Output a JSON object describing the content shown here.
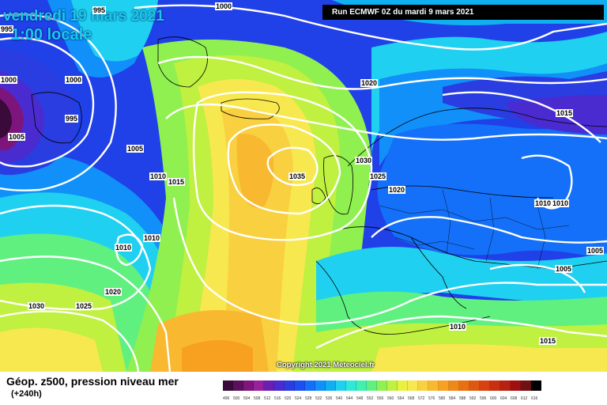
{
  "header": {
    "date_title": "vendredi 19 mars 2021",
    "time_title": "1:00 locale",
    "run_info": "Run ECMWF 0Z du mardi 9 mars 2021"
  },
  "footer": {
    "title": "Géop. z500, pression niveau mer",
    "subtitle": "(+240h)"
  },
  "copyright": "Copyright 2021 Meteociel.fr",
  "legend": {
    "values": [
      "496",
      "500",
      "504",
      "508",
      "512",
      "516",
      "520",
      "524",
      "528",
      "532",
      "536",
      "540",
      "544",
      "548",
      "552",
      "556",
      "560",
      "564",
      "568",
      "572",
      "576",
      "580",
      "584",
      "588",
      "592",
      "596",
      "600",
      "604",
      "608",
      "612",
      "616"
    ],
    "colors": [
      "#3a0a3a",
      "#5c0f5c",
      "#7d157d",
      "#9a1f9a",
      "#6a1fb0",
      "#4a2bd0",
      "#2a3de0",
      "#1c50f0",
      "#1470f8",
      "#1090f8",
      "#10b0f0",
      "#20d0f0",
      "#30e8d8",
      "#40f0b0",
      "#60f080",
      "#90f050",
      "#c0f040",
      "#e8f040",
      "#f8e850",
      "#f8d040",
      "#f8b830",
      "#f8a020",
      "#f08818",
      "#e87010",
      "#e05810",
      "#d84010",
      "#c83010",
      "#b82010",
      "#a01010",
      "#701010",
      "#000000"
    ]
  },
  "isobars": [
    {
      "label": "1000"
    },
    {
      "label": "995"
    },
    {
      "label": "995"
    },
    {
      "label": "1000"
    },
    {
      "label": "995"
    },
    {
      "label": "1005"
    },
    {
      "label": "1005"
    },
    {
      "label": "1010"
    },
    {
      "label": "1015"
    },
    {
      "label": "1010"
    },
    {
      "label": "1010"
    },
    {
      "label": "1020"
    },
    {
      "label": "1025"
    },
    {
      "label": "1030"
    },
    {
      "label": "1035"
    },
    {
      "label": "1020"
    },
    {
      "label": "1030"
    },
    {
      "label": "1025"
    },
    {
      "label": "1020"
    },
    {
      "label": "1015"
    },
    {
      "label": "1010"
    },
    {
      "label": "1010"
    },
    {
      "label": "1005"
    },
    {
      "label": "1005"
    },
    {
      "label": "1010"
    },
    {
      "label": "1015"
    },
    {
      "label": "1000"
    }
  ]
}
